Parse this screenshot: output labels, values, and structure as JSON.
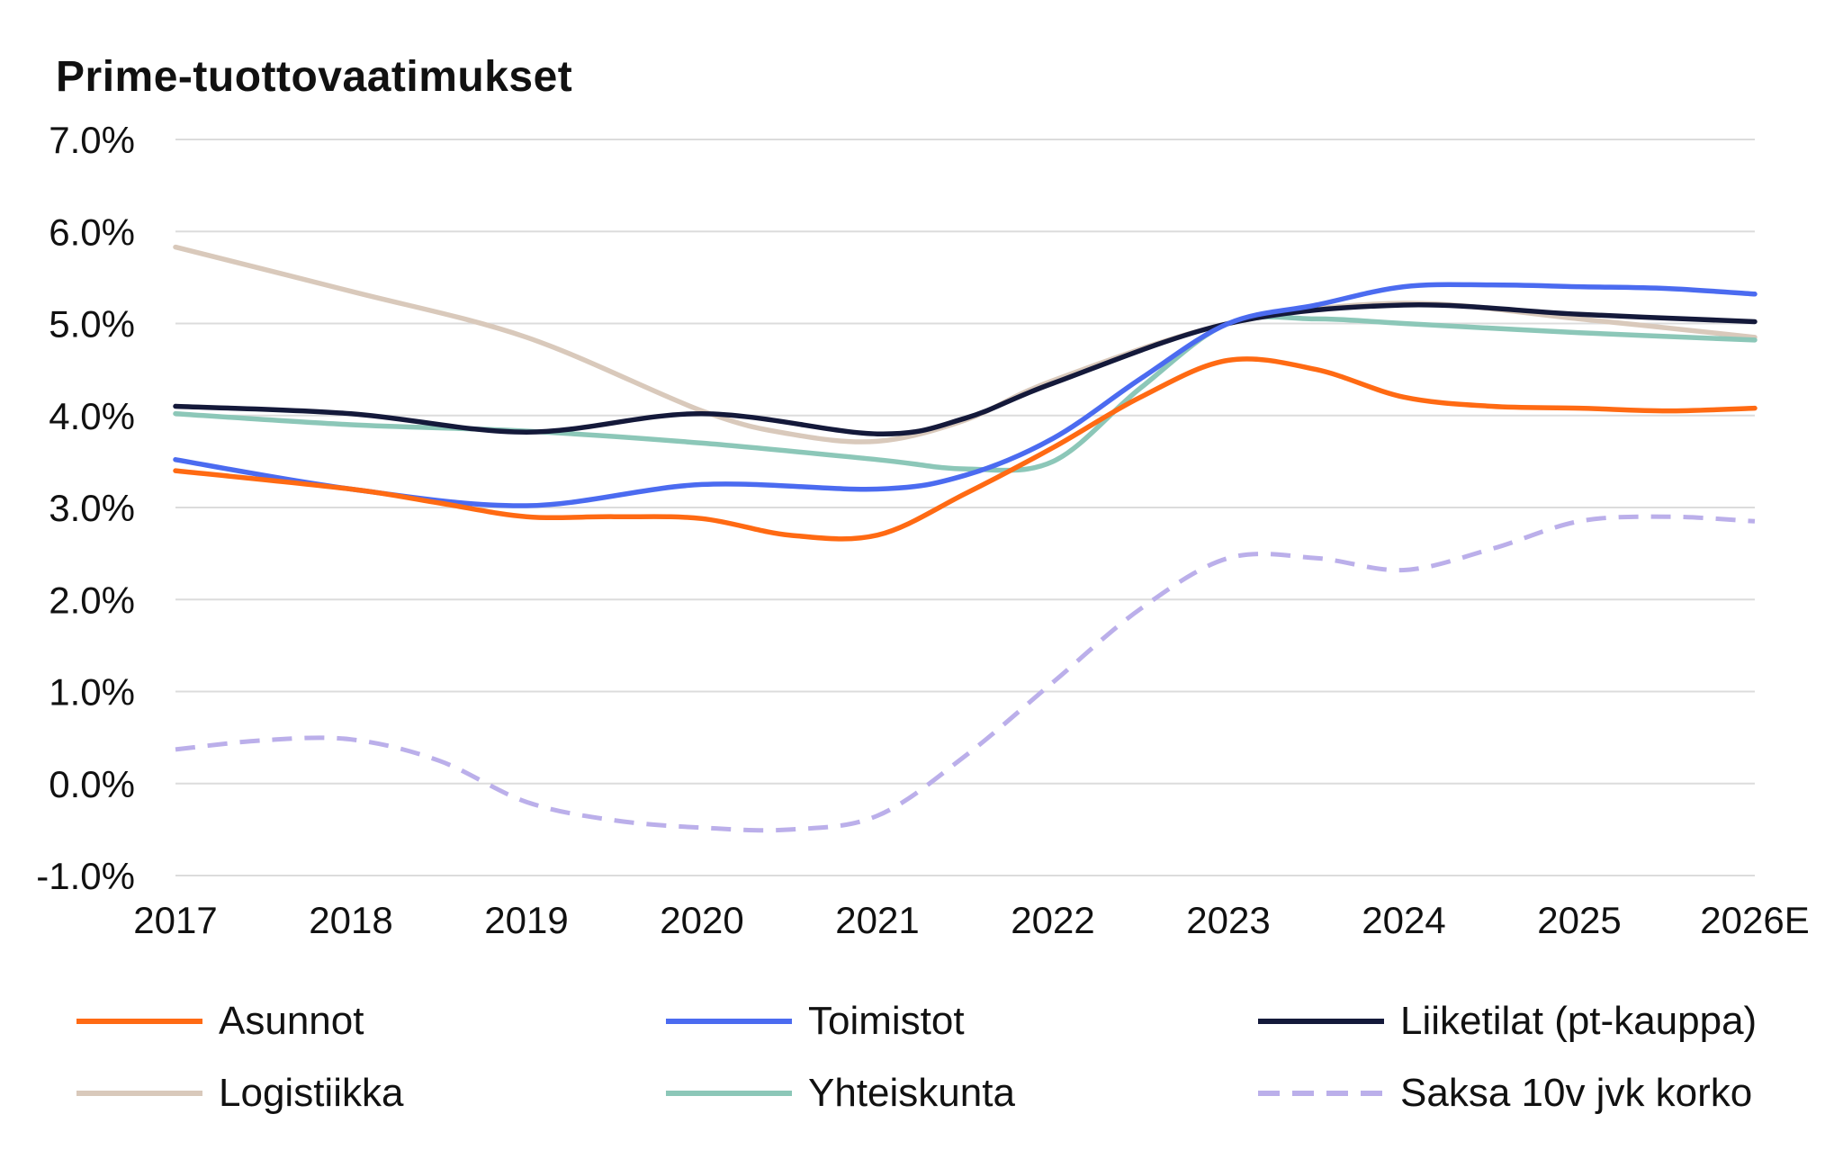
{
  "chart_data": {
    "type": "line",
    "title": "Prime-tuottovaatimukset",
    "xlabel": "",
    "ylabel": "",
    "categories": [
      "2017",
      "2018",
      "2019",
      "2020",
      "2021",
      "2022",
      "2023",
      "2024",
      "2025",
      "2026E"
    ],
    "ylim": [
      -1.0,
      7.0
    ],
    "yticks": [
      "7.0%",
      "6.0%",
      "5.0%",
      "4.0%",
      "3.0%",
      "2.0%",
      "1.0%",
      "0.0%",
      "-1.0%"
    ],
    "ytick_values": [
      7.0,
      6.0,
      5.0,
      4.0,
      3.0,
      2.0,
      1.0,
      0.0,
      -1.0
    ],
    "grid": true,
    "legend_position": "bottom",
    "series": [
      {
        "name": "Asunnot",
        "color": "#FF6A13",
        "dashed": false,
        "x": [
          0,
          1,
          1.5,
          2,
          2.5,
          3,
          3.5,
          4,
          4.5,
          5,
          5.5,
          6,
          6.5,
          7,
          7.5,
          8,
          8.5,
          9
        ],
        "values": [
          3.4,
          3.2,
          3.05,
          2.9,
          2.9,
          2.88,
          2.7,
          2.7,
          3.15,
          3.65,
          4.2,
          4.6,
          4.5,
          4.2,
          4.1,
          4.08,
          4.05,
          4.08
        ]
      },
      {
        "name": "Toimistot",
        "color": "#4B6BF0",
        "dashed": false,
        "x": [
          0,
          1,
          2,
          3,
          4,
          4.5,
          5,
          5.5,
          6,
          6.5,
          7,
          7.5,
          8,
          8.5,
          9
        ],
        "values": [
          3.52,
          3.2,
          3.02,
          3.25,
          3.2,
          3.35,
          3.75,
          4.4,
          5.0,
          5.2,
          5.4,
          5.42,
          5.4,
          5.38,
          5.32
        ]
      },
      {
        "name": "Liiketilat (pt-kauppa)",
        "color": "#14193A",
        "dashed": false,
        "x": [
          0,
          1,
          2,
          3,
          4,
          4.5,
          5,
          6,
          7,
          8,
          9
        ],
        "values": [
          4.1,
          4.02,
          3.82,
          4.02,
          3.8,
          3.97,
          4.35,
          5.0,
          5.2,
          5.1,
          5.02
        ]
      },
      {
        "name": "Logistiikka",
        "color": "#D9C9BB",
        "dashed": false,
        "x": [
          0,
          1,
          2,
          3,
          3.5,
          4,
          4.5,
          5,
          6,
          7,
          8,
          9
        ],
        "values": [
          5.83,
          5.35,
          4.85,
          4.05,
          3.8,
          3.72,
          3.95,
          4.38,
          5.0,
          5.22,
          5.05,
          4.85
        ]
      },
      {
        "name": "Yhteiskunta",
        "color": "#8CC7B8",
        "dashed": false,
        "x": [
          0,
          1,
          2,
          3,
          4,
          4.5,
          5,
          5.5,
          6,
          6.5,
          7,
          8,
          9
        ],
        "values": [
          4.02,
          3.9,
          3.83,
          3.7,
          3.52,
          3.42,
          3.5,
          4.3,
          5.0,
          5.05,
          5.0,
          4.9,
          4.82
        ]
      },
      {
        "name": "Saksa 10v jvk korko",
        "color": "#BBAFEA",
        "dashed": true,
        "x": [
          0,
          0.5,
          1,
          1.5,
          2,
          2.5,
          3,
          3.5,
          4,
          4.5,
          5,
          5.5,
          6,
          6.5,
          7,
          7.5,
          8,
          8.5,
          9
        ],
        "values": [
          0.37,
          0.47,
          0.48,
          0.25,
          -0.2,
          -0.4,
          -0.48,
          -0.5,
          -0.35,
          0.3,
          1.1,
          1.9,
          2.45,
          2.45,
          2.32,
          2.55,
          2.85,
          2.9,
          2.85
        ]
      }
    ]
  }
}
